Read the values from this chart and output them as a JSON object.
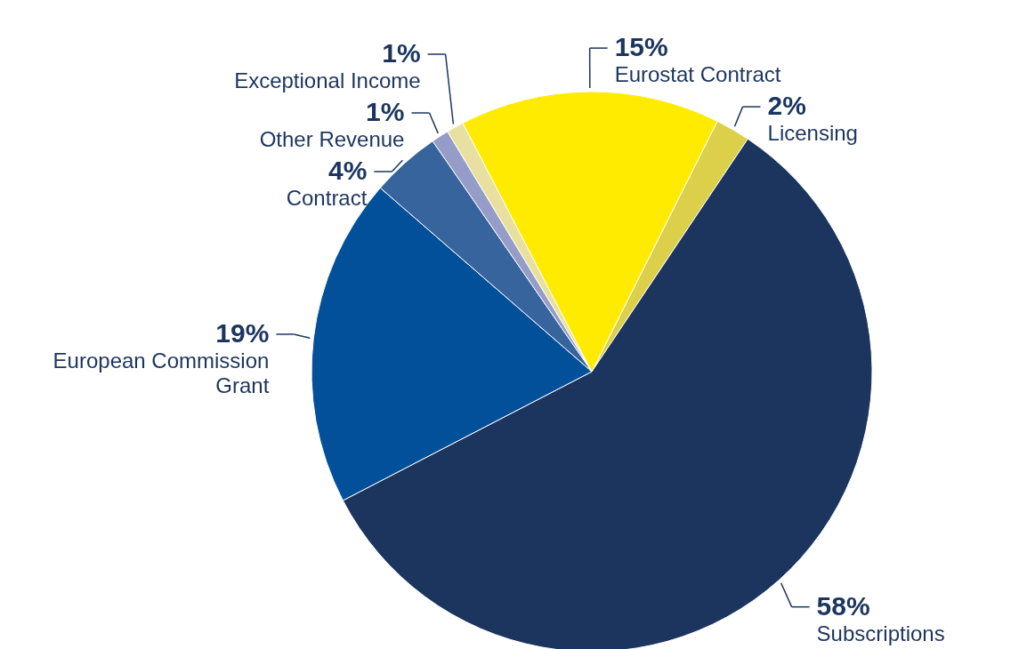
{
  "chart_data": {
    "type": "pie",
    "categories": [
      "Licensing",
      "Subscriptions",
      "European Commission Grant",
      "Contract",
      "Other Revenue",
      "Exceptional Income",
      "Eurostat Contract"
    ],
    "values": [
      2,
      58,
      19,
      4,
      1,
      1,
      15
    ],
    "colors": [
      "#dccf4a",
      "#1c355e",
      "#03509a",
      "#37649c",
      "#959cc8",
      "#e8e0a0",
      "#ffeb00"
    ],
    "value_labels": [
      "2%",
      "58%",
      "19%",
      "4%",
      "1%",
      "1%",
      "15%"
    ]
  }
}
